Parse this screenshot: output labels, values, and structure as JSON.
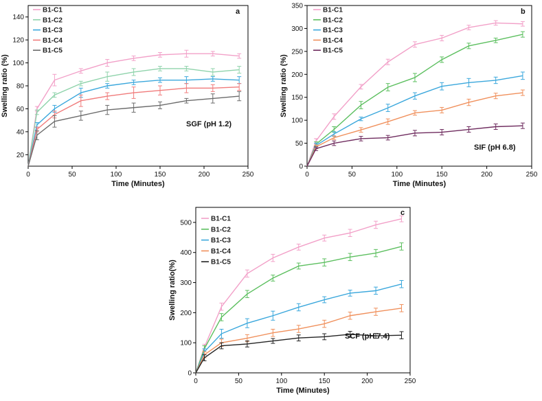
{
  "chart_data": [
    {
      "type": "line",
      "panel": "a",
      "annotation": "SGF (pH  1.2)",
      "xlabel": "Time (Minutes)",
      "ylabel": "Swelling ratio (%)",
      "xlim": [
        0,
        250
      ],
      "ylim": [
        10,
        150
      ],
      "xticks": [
        0,
        50,
        100,
        150,
        200,
        250
      ],
      "yticks": [
        20,
        40,
        60,
        80,
        100,
        120,
        140
      ],
      "legend_position": "top-left",
      "x": [
        0,
        10,
        30,
        60,
        90,
        120,
        150,
        180,
        210,
        240
      ],
      "series": [
        {
          "name": "B1-C1",
          "color": "#f2a0c8",
          "values": [
            10,
            60,
            85,
            93,
            100,
            104,
            107,
            108,
            108,
            106
          ],
          "errors": [
            0,
            2,
            5,
            2,
            3,
            2,
            2,
            3,
            2,
            2
          ]
        },
        {
          "name": "B1-C2",
          "color": "#8fd3ab",
          "values": [
            10,
            57,
            72,
            82,
            88,
            92,
            95,
            95,
            92,
            94
          ],
          "errors": [
            0,
            2,
            2,
            2,
            4,
            3,
            2,
            2,
            3,
            3
          ]
        },
        {
          "name": "B1-C3",
          "color": "#3aa7dc",
          "values": [
            10,
            46,
            60,
            74,
            80,
            83,
            85,
            85,
            86,
            85
          ],
          "errors": [
            0,
            2,
            3,
            4,
            2,
            2,
            2,
            3,
            2,
            3
          ]
        },
        {
          "name": "B1-C4",
          "color": "#f07b7b",
          "values": [
            10,
            42,
            55,
            67,
            71,
            74,
            76,
            78,
            78,
            79
          ],
          "errors": [
            0,
            2,
            3,
            5,
            3,
            5,
            4,
            4,
            3,
            3
          ]
        },
        {
          "name": "B1-C5",
          "color": "#6b6b6b",
          "values": [
            10,
            37,
            49,
            54,
            59,
            61,
            63,
            67,
            69,
            71
          ],
          "errors": [
            0,
            4,
            5,
            4,
            4,
            4,
            3,
            2,
            4,
            4
          ]
        }
      ]
    },
    {
      "type": "line",
      "panel": "b",
      "annotation": "SIF (pH  6.8)",
      "xlabel": "Time (Minutes)",
      "ylabel": "Swelling ratio (%)",
      "xlim": [
        0,
        250
      ],
      "ylim": [
        0,
        350
      ],
      "xticks": [
        0,
        50,
        100,
        150,
        200,
        250
      ],
      "yticks": [
        0,
        50,
        100,
        150,
        200,
        250,
        300,
        350
      ],
      "legend_position": "top-left",
      "x": [
        0,
        10,
        30,
        60,
        90,
        120,
        150,
        180,
        210,
        240
      ],
      "series": [
        {
          "name": "B1-C1",
          "color": "#f2a0c8",
          "values": [
            0,
            55,
            108,
            173,
            227,
            265,
            279,
            302,
            312,
            310
          ],
          "errors": [
            0,
            5,
            6,
            5,
            6,
            6,
            6,
            5,
            5,
            5
          ]
        },
        {
          "name": "B1-C2",
          "color": "#5cbf5f",
          "values": [
            0,
            48,
            80,
            133,
            172,
            193,
            232,
            262,
            274,
            287
          ],
          "errors": [
            0,
            5,
            6,
            8,
            8,
            9,
            6,
            6,
            5,
            6
          ]
        },
        {
          "name": "B1-C3",
          "color": "#3aa7dc",
          "values": [
            0,
            45,
            70,
            103,
            127,
            153,
            174,
            182,
            187,
            197
          ],
          "errors": [
            0,
            5,
            5,
            4,
            8,
            7,
            8,
            9,
            7,
            8
          ]
        },
        {
          "name": "B1-C4",
          "color": "#f0905c",
          "values": [
            0,
            42,
            62,
            79,
            97,
            116,
            122,
            139,
            153,
            160
          ],
          "errors": [
            0,
            4,
            4,
            5,
            6,
            5,
            6,
            7,
            6,
            6
          ]
        },
        {
          "name": "B1-C5",
          "color": "#6e2b5e",
          "values": [
            0,
            38,
            50,
            60,
            62,
            72,
            74,
            80,
            86,
            88
          ],
          "errors": [
            0,
            4,
            5,
            5,
            5,
            6,
            6,
            6,
            6,
            6
          ]
        }
      ]
    },
    {
      "type": "line",
      "panel": "c",
      "annotation": "SCF (pH 7.4)",
      "xlabel": "Time (Minutes)",
      "ylabel": "Swelling ratio(%)",
      "xlim": [
        0,
        250
      ],
      "ylim": [
        0,
        550
      ],
      "xticks": [
        0,
        50,
        100,
        150,
        200,
        250
      ],
      "yticks": [
        0,
        100,
        200,
        300,
        400,
        500
      ],
      "legend_position": "top-left",
      "x": [
        0,
        10,
        30,
        60,
        90,
        120,
        150,
        180,
        210,
        240
      ],
      "series": [
        {
          "name": "B1-C1",
          "color": "#f2a0c8",
          "values": [
            0,
            85,
            220,
            330,
            382,
            418,
            448,
            465,
            492,
            512
          ],
          "errors": [
            0,
            10,
            12,
            12,
            12,
            10,
            10,
            12,
            12,
            10
          ]
        },
        {
          "name": "B1-C2",
          "color": "#5cbf5f",
          "values": [
            0,
            80,
            185,
            262,
            315,
            355,
            367,
            385,
            398,
            420
          ],
          "errors": [
            0,
            10,
            12,
            12,
            10,
            10,
            12,
            12,
            12,
            12
          ]
        },
        {
          "name": "B1-C3",
          "color": "#3aa7dc",
          "values": [
            0,
            70,
            130,
            165,
            190,
            218,
            243,
            265,
            273,
            295
          ],
          "errors": [
            0,
            10,
            15,
            15,
            15,
            12,
            10,
            10,
            12,
            12
          ]
        },
        {
          "name": "B1-C4",
          "color": "#f0905c",
          "values": [
            0,
            60,
            100,
            115,
            133,
            146,
            163,
            190,
            203,
            215
          ],
          "errors": [
            0,
            10,
            12,
            12,
            12,
            12,
            12,
            12,
            12,
            12
          ]
        },
        {
          "name": "B1-C5",
          "color": "#222222",
          "values": [
            0,
            50,
            90,
            96,
            106,
            116,
            120,
            128,
            123,
            125
          ],
          "errors": [
            0,
            10,
            10,
            10,
            8,
            10,
            10,
            10,
            8,
            12
          ]
        }
      ]
    }
  ]
}
